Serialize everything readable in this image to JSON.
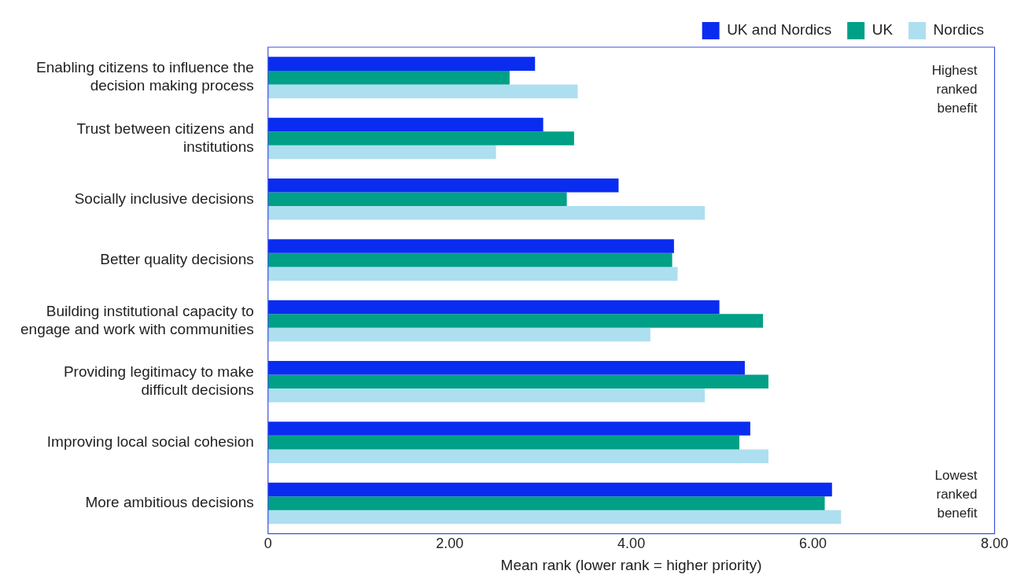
{
  "chart_data": {
    "type": "bar",
    "orientation": "horizontal",
    "categories": [
      "Enabling citizens to influence the decision making process",
      "Trust between citizens and institutions",
      "Socially inclusive decisions",
      "Better quality decisions",
      "Building institutional capacity to engage and work with communities",
      "Providing legitimacy to make difficult decisions",
      "Improving local social cohesion",
      "More ambitious decisions"
    ],
    "series": [
      {
        "name": "UK and Nordics",
        "color": "#0a2cf0",
        "values": [
          2.94,
          3.03,
          3.86,
          4.47,
          4.97,
          5.25,
          5.31,
          6.21
        ]
      },
      {
        "name": "UK",
        "color": "#00a086",
        "values": [
          2.66,
          3.37,
          3.29,
          4.45,
          5.45,
          5.51,
          5.19,
          6.13
        ]
      },
      {
        "name": "Nordics",
        "color": "#addff0",
        "values": [
          3.41,
          2.51,
          4.81,
          4.51,
          4.21,
          4.81,
          5.51,
          6.31
        ]
      }
    ],
    "xlabel": "Mean rank (lower rank = higher priority)",
    "xlim": [
      0,
      8
    ],
    "xticks": [
      0,
      {
        "value": 2,
        "label": "2.00"
      },
      {
        "value": 4,
        "label": "4.00"
      },
      {
        "value": 6,
        "label": "6.00"
      },
      {
        "value": 8,
        "label": "8.00"
      }
    ],
    "grid": false,
    "legend": "top right",
    "annotations": [
      "Highest ranked benefit",
      "Lowest ranked benefit"
    ]
  }
}
